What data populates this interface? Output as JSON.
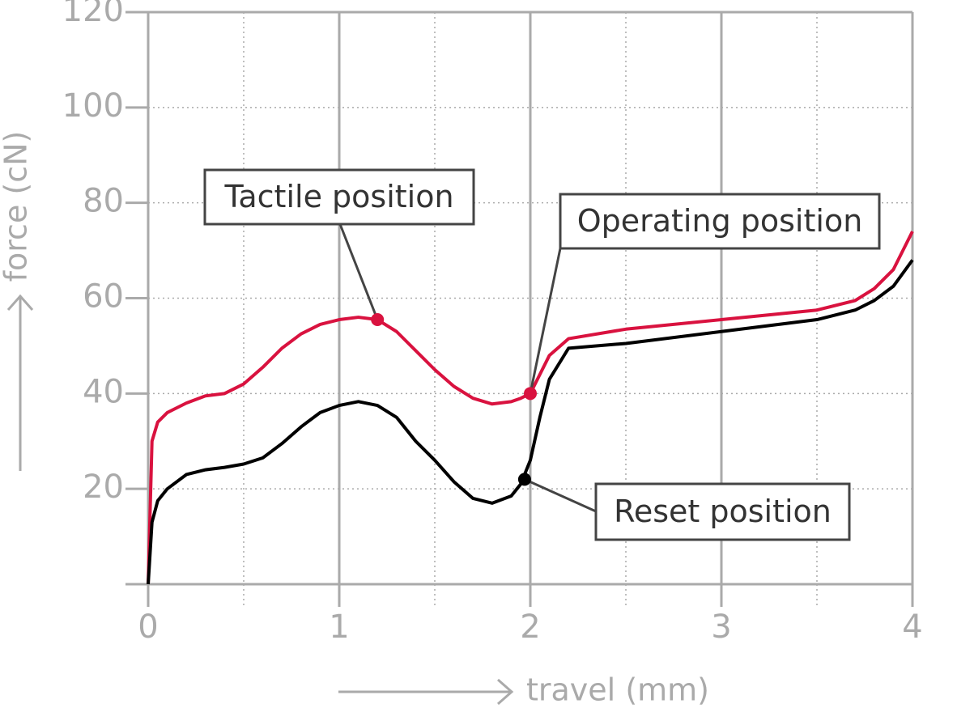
{
  "chart_data": {
    "type": "line",
    "x_label": "travel (mm)",
    "y_label": "force (cN)",
    "x": [
      0,
      0.02,
      0.05,
      0.1,
      0.2,
      0.3,
      0.4,
      0.5,
      0.6,
      0.7,
      0.8,
      0.9,
      1.0,
      1.1,
      1.2,
      1.3,
      1.4,
      1.5,
      1.6,
      1.7,
      1.8,
      1.9,
      1.95,
      2.0,
      2.05,
      2.1,
      2.2,
      2.5,
      3.0,
      3.5,
      3.7,
      3.8,
      3.9,
      4.0
    ],
    "series": [
      {
        "color": "#d9123f",
        "values": [
          0,
          30,
          34,
          36,
          38,
          39.5,
          40,
          42,
          45.5,
          49.5,
          52.5,
          54.5,
          55.5,
          56,
          55.5,
          53,
          49,
          45,
          41.5,
          39,
          37.8,
          38.3,
          39,
          40,
          44,
          48,
          51.5,
          53.5,
          55.5,
          57.5,
          59.5,
          62,
          66,
          74
        ]
      },
      {
        "color": "#000000",
        "values": [
          0,
          13,
          17.5,
          20,
          23,
          24,
          24.5,
          25.2,
          26.5,
          29.5,
          33,
          36,
          37.5,
          38.3,
          37.5,
          35,
          30,
          26,
          21.5,
          18,
          17,
          18.5,
          21,
          26,
          35,
          43,
          49.5,
          50.5,
          53,
          55.5,
          57.5,
          59.5,
          62.5,
          68
        ]
      }
    ],
    "annotations": [
      {
        "text": "Tactile position",
        "x": 1.2,
        "y": 55.5,
        "color": "#d9123f"
      },
      {
        "text": "Operating position",
        "x": 2.0,
        "y": 40,
        "color": "#d9123f"
      },
      {
        "text": "Reset position",
        "x": 1.97,
        "y": 22,
        "color": "#000000"
      }
    ],
    "xlim": [
      0,
      4
    ],
    "ylim": [
      0,
      120
    ],
    "xticks": [
      0,
      1,
      2,
      3,
      4
    ],
    "yticks": [
      20,
      40,
      60,
      80,
      100,
      120
    ],
    "x_minor_ticks": [
      0.5,
      1.5,
      2.5,
      3.5
    ],
    "grid": true
  }
}
